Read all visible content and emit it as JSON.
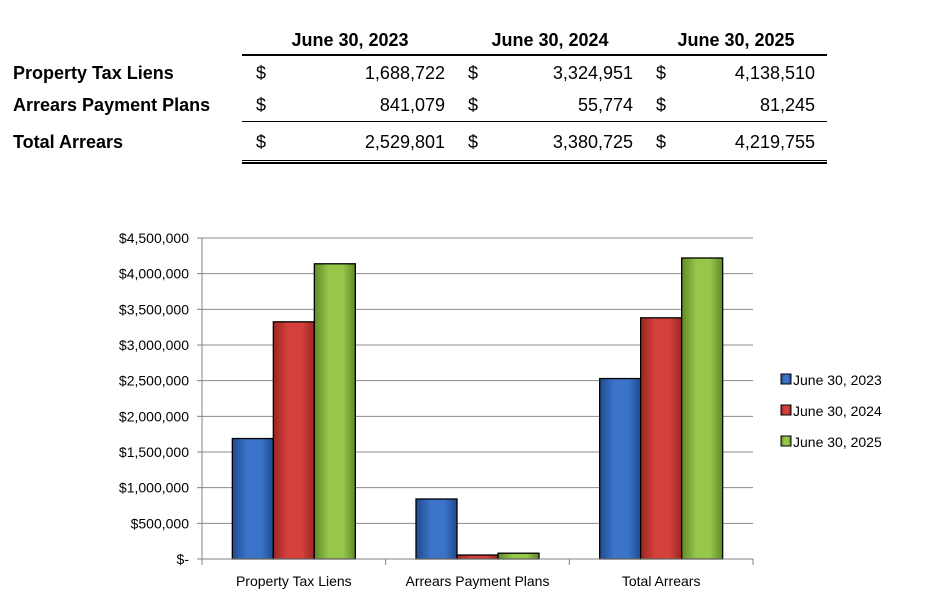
{
  "table": {
    "columns": [
      "June 30, 2023",
      "June 30, 2024",
      "June 30, 2025"
    ],
    "currency_symbol": "$",
    "rows": [
      {
        "label": "Property Tax Liens",
        "values": [
          "1,688,722",
          "3,324,951",
          "4,138,510"
        ]
      },
      {
        "label": "Arrears Payment Plans",
        "values": [
          "841,079",
          "55,774",
          "81,245"
        ]
      }
    ],
    "total": {
      "label": "Total Arrears",
      "values": [
        "2,529,801",
        "3,380,725",
        "4,219,755"
      ]
    }
  },
  "colors": {
    "series": [
      "#3a73c8",
      "#d6403c",
      "#96c64a"
    ],
    "series_dark": [
      "#1f4b8f",
      "#9a2622",
      "#5f8a26"
    ],
    "gridline": "#8c8c8c",
    "axis": "#808080"
  },
  "chart_data": {
    "type": "bar",
    "categories": [
      "Property Tax Liens",
      "Arrears Payment Plans",
      "Total Arrears"
    ],
    "series": [
      {
        "name": "June 30, 2023",
        "values": [
          1688722,
          841079,
          2529801
        ]
      },
      {
        "name": "June 30, 2024",
        "values": [
          3324951,
          55774,
          3380725
        ]
      },
      {
        "name": "June 30, 2025",
        "values": [
          4138510,
          81245,
          4219755
        ]
      }
    ],
    "ylim": [
      0,
      4500000
    ],
    "yticks": [
      0,
      500000,
      1000000,
      1500000,
      2000000,
      2500000,
      3000000,
      3500000,
      4000000,
      4500000
    ],
    "ytick_labels": [
      "$-",
      "$500,000",
      "$1,000,000",
      "$1,500,000",
      "$2,000,000",
      "$2,500,000",
      "$3,000,000",
      "$3,500,000",
      "$4,000,000",
      "$4,500,000"
    ],
    "grid": true,
    "legend_position": "right"
  }
}
